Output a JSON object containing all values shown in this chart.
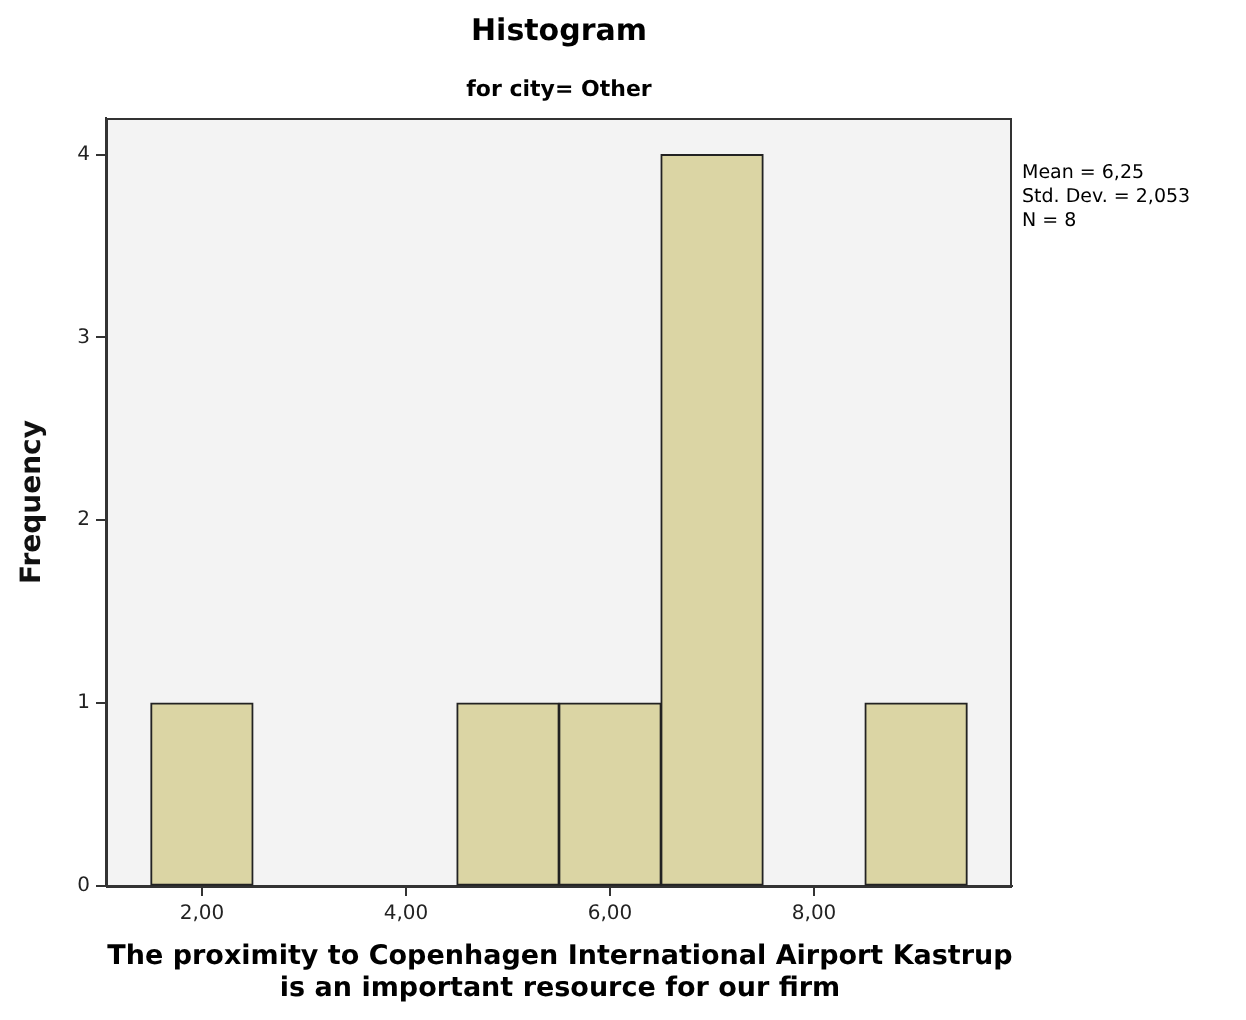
{
  "chart_data": {
    "type": "histogram",
    "title": "Histogram",
    "subtitle": "for city= Other",
    "xlabel": "The proximity to Copenhagen International Airport Kastrup is an important resource for our firm",
    "ylabel": "Frequency",
    "bins": [
      1.5,
      2.5,
      3.5,
      4.5,
      5.5,
      6.5,
      7.5,
      8.5,
      9.5
    ],
    "values": [
      1,
      0,
      0,
      1,
      1,
      4,
      0,
      1
    ],
    "color": "#dbd5a4",
    "xlim": [
      1.06,
      9.94
    ],
    "xticks": [
      {
        "value": 2,
        "label": "2,00"
      },
      {
        "value": 4,
        "label": "4,00"
      },
      {
        "value": 6,
        "label": "6,00"
      },
      {
        "value": 8,
        "label": "8,00"
      }
    ],
    "ylim": [
      0,
      4.2
    ],
    "yticks": [
      0,
      1,
      2,
      3,
      4
    ],
    "grid": false,
    "legend": false,
    "annotations": [
      "Mean = 6,25",
      "Std. Dev. = 2,053",
      "N = 8"
    ]
  }
}
